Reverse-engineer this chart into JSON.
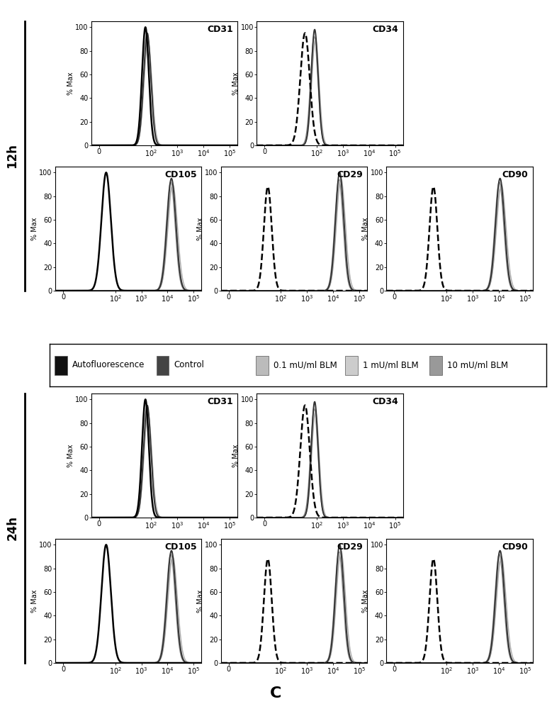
{
  "title": "C",
  "colors": {
    "autofluorescence": "#000000",
    "control": "#333333",
    "blm01": "#aaaaaa",
    "blm1": "#bbbbbb",
    "blm10": "#888888"
  },
  "background": "#ffffff",
  "legend_items": [
    {
      "label": "Autofluorescence",
      "color": "#111111",
      "patch": true
    },
    {
      "label": "Control",
      "color": "#444444",
      "patch": true
    },
    {
      "label": "0.1 mU/ml BLM",
      "color": "#bbbbbb",
      "patch": true
    },
    {
      "label": "1 mU/ml BLM",
      "color": "#cccccc",
      "patch": true
    },
    {
      "label": "10 mU/ml BLM",
      "color": "#999999",
      "patch": true
    }
  ],
  "panels": {
    "CD31": {
      "auto_peak": 1.78,
      "auto_sigma": 0.13,
      "auto_amp": 100,
      "auto_dashed": false,
      "ctrl_peak": 1.85,
      "ctrl_sigma": 0.14,
      "ctrl_amp": 95,
      "b1_peak": 1.87,
      "b1_sigma": 0.15,
      "b1_amp": 90,
      "b2_peak": 1.88,
      "b2_sigma": 0.15,
      "b2_amp": 88,
      "b3_peak": 1.86,
      "b3_sigma": 0.14,
      "b3_amp": 92
    },
    "CD34": {
      "auto_peak": 1.55,
      "auto_sigma": 0.18,
      "auto_amp": 95,
      "auto_dashed": true,
      "ctrl_peak": 1.92,
      "ctrl_sigma": 0.13,
      "ctrl_amp": 98,
      "b1_peak": 1.95,
      "b1_sigma": 0.14,
      "b1_amp": 90,
      "b2_peak": 1.93,
      "b2_sigma": 0.14,
      "b2_amp": 87,
      "b3_peak": 1.9,
      "b3_sigma": 0.14,
      "b3_amp": 92
    },
    "CD105": {
      "auto_peak": 1.65,
      "auto_sigma": 0.18,
      "auto_amp": 100,
      "auto_dashed": false,
      "ctrl_peak": 4.15,
      "ctrl_sigma": 0.17,
      "ctrl_amp": 95,
      "b1_peak": 4.2,
      "b1_sigma": 0.18,
      "b1_amp": 90,
      "b2_peak": 4.17,
      "b2_sigma": 0.17,
      "b2_amp": 88,
      "b3_peak": 4.12,
      "b3_sigma": 0.17,
      "b3_amp": 92
    },
    "CD29": {
      "auto_peak": 1.5,
      "auto_sigma": 0.15,
      "auto_amp": 88,
      "auto_dashed": true,
      "ctrl_peak": 4.25,
      "ctrl_sigma": 0.16,
      "ctrl_amp": 100,
      "b1_peak": 4.3,
      "b1_sigma": 0.17,
      "b1_amp": 95,
      "b2_peak": 4.27,
      "b2_sigma": 0.16,
      "b2_amp": 93,
      "b3_peak": 4.22,
      "b3_sigma": 0.16,
      "b3_amp": 94
    },
    "CD90": {
      "auto_peak": 1.5,
      "auto_sigma": 0.15,
      "auto_amp": 88,
      "auto_dashed": true,
      "ctrl_peak": 4.05,
      "ctrl_sigma": 0.17,
      "ctrl_amp": 95,
      "b1_peak": 4.1,
      "b1_sigma": 0.18,
      "b1_amp": 90,
      "b2_peak": 4.07,
      "b2_sigma": 0.17,
      "b2_amp": 87,
      "b3_peak": 4.02,
      "b3_sigma": 0.17,
      "b3_amp": 92
    }
  }
}
